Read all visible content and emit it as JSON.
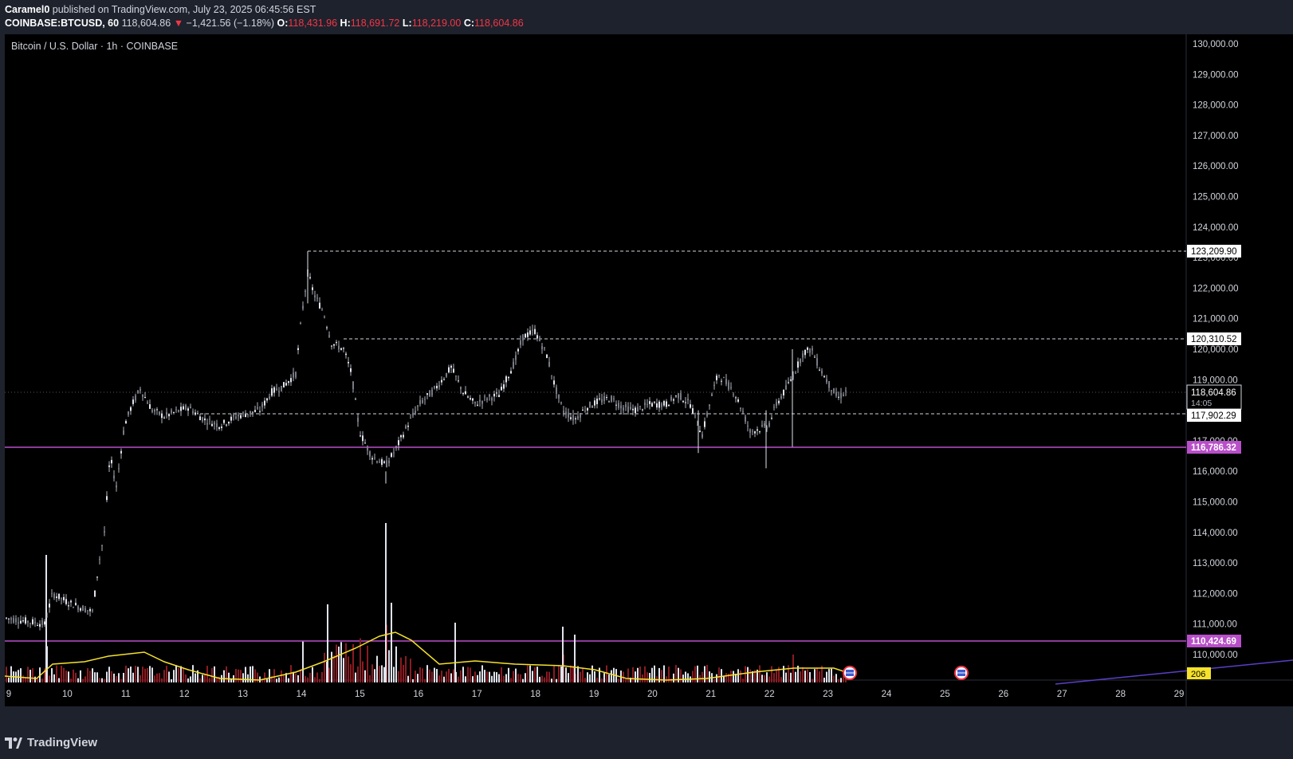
{
  "header": {
    "author": "Caramel0",
    "published": "published on TradingView.com, July 23, 2025 06:45:56 EST",
    "symbol": "COINBASE:BTCUSD, 60",
    "last": "118,604.86",
    "change": "−1,421.56 (−1.18%)",
    "open_label": "O:",
    "open": "118,431.96",
    "high_label": "H:",
    "high": "118,691.72",
    "low_label": "L:",
    "low": "118,219.00",
    "close_label": "C:",
    "close": "118,604.86"
  },
  "chart_title": "Bitcoin / U.S. Dollar · 1h · COINBASE",
  "price_axis": {
    "ticks": [
      "130,000.00",
      "129,000.00",
      "128,000.00",
      "127,000.00",
      "126,000.00",
      "125,000.00",
      "124,000.00",
      "123,000.00",
      "122,000.00",
      "121,000.00",
      "120,000.00",
      "119,000.00",
      "118,000.00",
      "117,000.00",
      "116,000.00",
      "115,000.00",
      "114,000.00",
      "113,000.00",
      "112,000.00",
      "111,000.00",
      "110,000.00"
    ]
  },
  "time_axis": {
    "ticks": [
      "9",
      "10",
      "11",
      "12",
      "13",
      "14",
      "15",
      "16",
      "17",
      "18",
      "19",
      "20",
      "21",
      "22",
      "23",
      "24",
      "25",
      "26",
      "27",
      "28",
      "29"
    ]
  },
  "levels": {
    "high_dashed": "123,209.90",
    "mid_dashed": "120,310.52",
    "current": "118,604.86",
    "countdown": "14:05",
    "low_dashed": "117,902.29",
    "support_purple": "116,786.32",
    "support_purple_2": "110,424.69",
    "volume_ma": "206"
  },
  "colors": {
    "background": "#000000",
    "candle": "#e0e3eb",
    "purple": "#b84fc9",
    "volume_ma": "#f5e12a",
    "volume_red": "#8a1c22",
    "trend_line": "#5b3ec8"
  },
  "footer": {
    "logo_text": "TradingView"
  }
}
